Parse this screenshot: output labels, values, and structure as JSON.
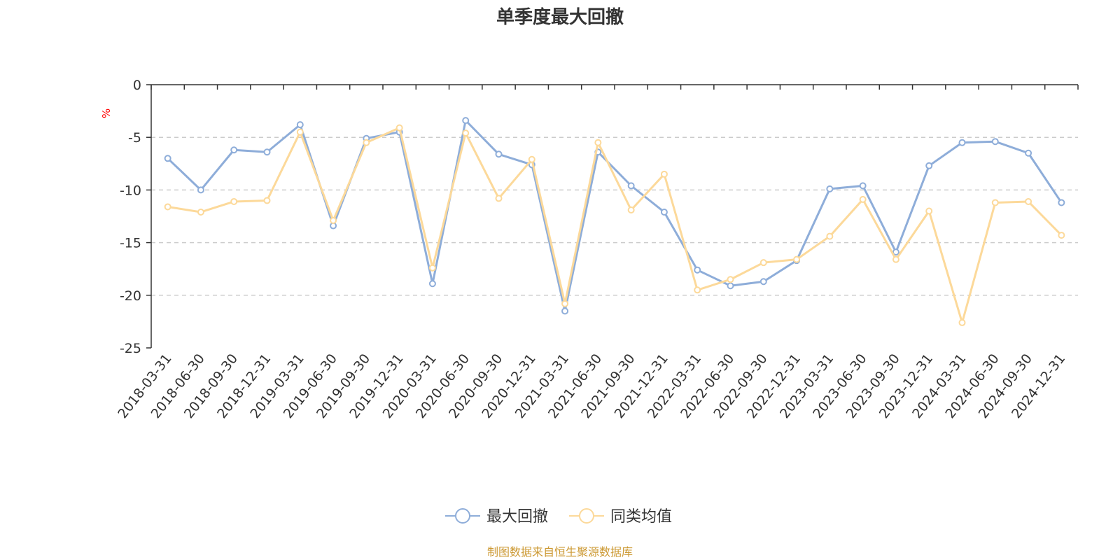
{
  "chart_data": {
    "type": "line",
    "title": "单季度最大回撤",
    "ylabel": "%",
    "ylim": [
      -25,
      0
    ],
    "yticks": [
      0,
      -5,
      -10,
      -15,
      -20,
      -25
    ],
    "grid": true,
    "legend_position": "bottom-center",
    "x": [
      "2018-03-31",
      "2018-06-30",
      "2018-09-30",
      "2018-12-31",
      "2019-03-31",
      "2019-06-30",
      "2019-09-30",
      "2019-12-31",
      "2020-03-31",
      "2020-06-30",
      "2020-09-30",
      "2020-12-31",
      "2021-03-31",
      "2021-06-30",
      "2021-09-30",
      "2021-12-31",
      "2022-03-31",
      "2022-06-30",
      "2022-09-30",
      "2022-12-31",
      "2023-03-31",
      "2023-06-30",
      "2023-09-30",
      "2023-12-31",
      "2024-03-31",
      "2024-06-30",
      "2024-09-30",
      "2024-12-31"
    ],
    "series": [
      {
        "name": "最大回撤",
        "color": "#8eadd9",
        "values": [
          -7.0,
          -10.0,
          -6.2,
          -6.4,
          -3.8,
          -13.4,
          -5.1,
          -4.5,
          -18.9,
          -3.4,
          -6.6,
          -7.6,
          -21.5,
          -6.4,
          -9.6,
          -12.1,
          -17.6,
          -19.1,
          -18.7,
          -16.7,
          -9.9,
          -9.6,
          -15.9,
          -7.7,
          -5.5,
          -5.4,
          -6.5,
          -11.2
        ]
      },
      {
        "name": "同类均值",
        "color": "#fcd99a",
        "values": [
          -11.6,
          -12.1,
          -11.1,
          -11.0,
          -4.5,
          -12.9,
          -5.5,
          -4.1,
          -17.4,
          -4.6,
          -10.8,
          -7.1,
          -20.8,
          -5.5,
          -11.9,
          -8.5,
          -19.5,
          -18.5,
          -16.9,
          -16.6,
          -14.4,
          -10.9,
          -16.6,
          -12.0,
          -22.6,
          -11.2,
          -11.1,
          -14.3
        ]
      }
    ]
  },
  "source_text": "制图数据来自恒生聚源数据库",
  "colors": {
    "axis": "#333333",
    "grid": "#cccccc",
    "unit": "#ff0000",
    "source": "#cc9933",
    "point_fill": "#ffffff"
  }
}
